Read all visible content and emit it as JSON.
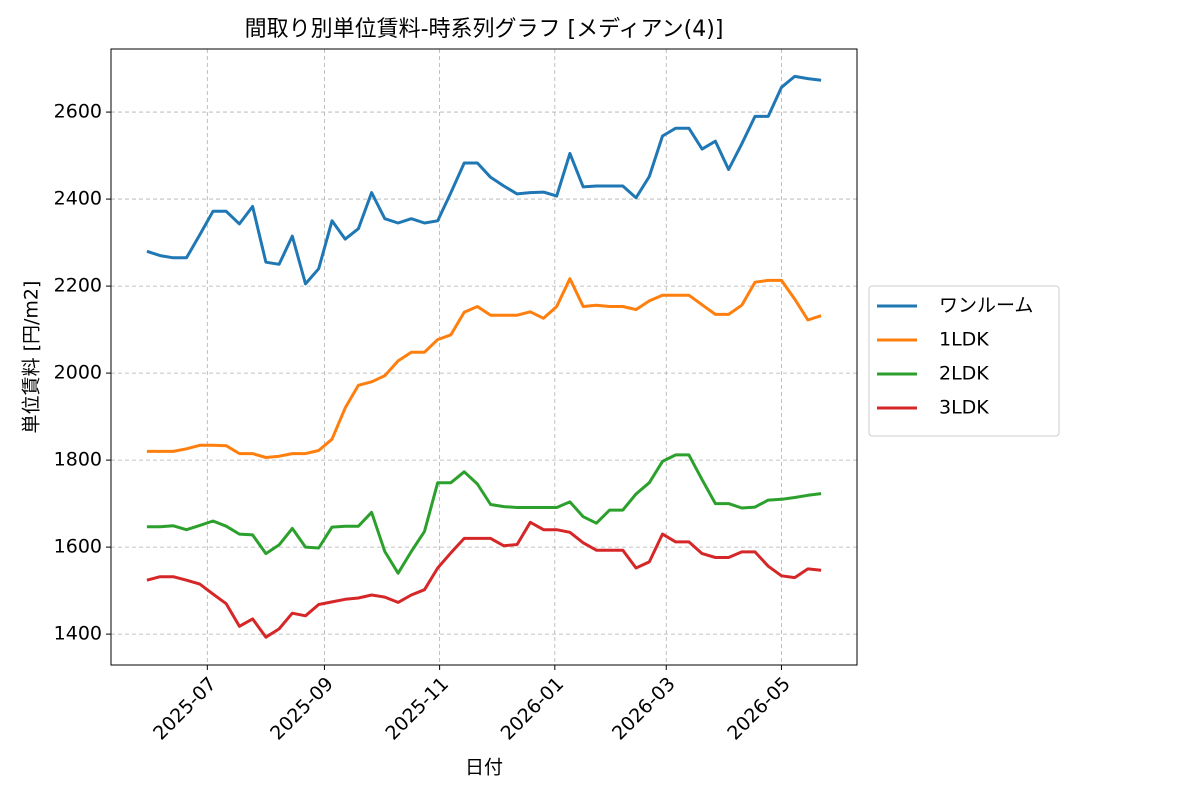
{
  "chart_data": {
    "type": "line",
    "title": "間取り別単位賃料-時系列グラフ [メディアン(4)]",
    "x_label": "日付",
    "y_label": "単位賃料 [円/m2]",
    "x": [
      "2025-05-30",
      "2025-06-06",
      "2025-06-13",
      "2025-06-20",
      "2025-06-27",
      "2025-07-04",
      "2025-07-11",
      "2025-07-18",
      "2025-07-25",
      "2025-08-01",
      "2025-08-08",
      "2025-08-15",
      "2025-08-22",
      "2025-08-29",
      "2025-09-05",
      "2025-09-12",
      "2025-09-19",
      "2025-09-26",
      "2025-10-03",
      "2025-10-10",
      "2025-10-17",
      "2025-10-24",
      "2025-10-31",
      "2025-11-07",
      "2025-11-14",
      "2025-11-21",
      "2025-11-28",
      "2025-12-05",
      "2025-12-12",
      "2025-12-19",
      "2025-12-26",
      "2026-01-02",
      "2026-01-09",
      "2026-01-16",
      "2026-01-23",
      "2026-01-30",
      "2026-02-06",
      "2026-02-13",
      "2026-02-20",
      "2026-02-27",
      "2026-03-06",
      "2026-03-13",
      "2026-03-20",
      "2026-03-27",
      "2026-04-03",
      "2026-04-10",
      "2026-04-17",
      "2026-04-24",
      "2026-05-01",
      "2026-05-08",
      "2026-05-15",
      "2026-05-22"
    ],
    "series": [
      {
        "name": "ワンルーム",
        "color": "#1f77b4",
        "values": [
          2280,
          2270,
          2265,
          2265,
          2318,
          2372,
          2372,
          2343,
          2383,
          2255,
          2250,
          2315,
          2205,
          2240,
          2350,
          2308,
          2332,
          2415,
          2355,
          2345,
          2355,
          2345,
          2350,
          2415,
          2483,
          2483,
          2450,
          2430,
          2412,
          2415,
          2416,
          2407,
          2505,
          2428,
          2430,
          2430,
          2430,
          2403,
          2452,
          2545,
          2563,
          2563,
          2515,
          2533,
          2468,
          2527,
          2590,
          2590,
          2657,
          2682,
          2677,
          2673
        ]
      },
      {
        "name": "1LDK",
        "color": "#ff7f0e",
        "values": [
          1820,
          1820,
          1820,
          1826,
          1834,
          1834,
          1833,
          1815,
          1815,
          1806,
          1809,
          1815,
          1815,
          1822,
          1848,
          1920,
          1972,
          1980,
          1994,
          2028,
          2048,
          2048,
          2077,
          2088,
          2140,
          2153,
          2133,
          2133,
          2133,
          2141,
          2126,
          2153,
          2217,
          2153,
          2156,
          2153,
          2153,
          2146,
          2166,
          2179,
          2179,
          2179,
          2157,
          2135,
          2135,
          2156,
          2209,
          2213,
          2213,
          2170,
          2122,
          2132
        ]
      },
      {
        "name": "2LDK",
        "color": "#2ca02c",
        "values": [
          1647,
          1647,
          1649,
          1640,
          1650,
          1660,
          1648,
          1630,
          1628,
          1585,
          1605,
          1643,
          1600,
          1598,
          1646,
          1648,
          1648,
          1680,
          1590,
          1540,
          1590,
          1636,
          1748,
          1748,
          1773,
          1745,
          1698,
          1693,
          1691,
          1691,
          1691,
          1691,
          1704,
          1670,
          1655,
          1685,
          1685,
          1722,
          1748,
          1797,
          1812,
          1812,
          1755,
          1700,
          1700,
          1690,
          1692,
          1708,
          1710,
          1714,
          1719,
          1723
        ]
      },
      {
        "name": "3LDK",
        "color": "#d62728",
        "values": [
          1524,
          1532,
          1532,
          1524,
          1515,
          1492,
          1470,
          1418,
          1435,
          1393,
          1412,
          1448,
          1442,
          1468,
          1474,
          1480,
          1483,
          1490,
          1485,
          1473,
          1490,
          1502,
          1552,
          1587,
          1620,
          1620,
          1620,
          1603,
          1606,
          1657,
          1640,
          1640,
          1634,
          1610,
          1593,
          1593,
          1593,
          1552,
          1566,
          1630,
          1612,
          1612,
          1585,
          1576,
          1576,
          1589,
          1589,
          1556,
          1534,
          1530,
          1550,
          1547
        ]
      }
    ],
    "xlim": [
      "2025-05-11",
      "2026-06-10"
    ],
    "xticks": [
      "2025-07",
      "2025-09",
      "2025-11",
      "2026-01",
      "2026-03",
      "2026-05"
    ],
    "ylim": [
      1329,
      2745
    ],
    "yticks": [
      1400,
      1600,
      1800,
      2000,
      2200,
      2400,
      2600
    ],
    "grid": true,
    "legend": "right"
  }
}
